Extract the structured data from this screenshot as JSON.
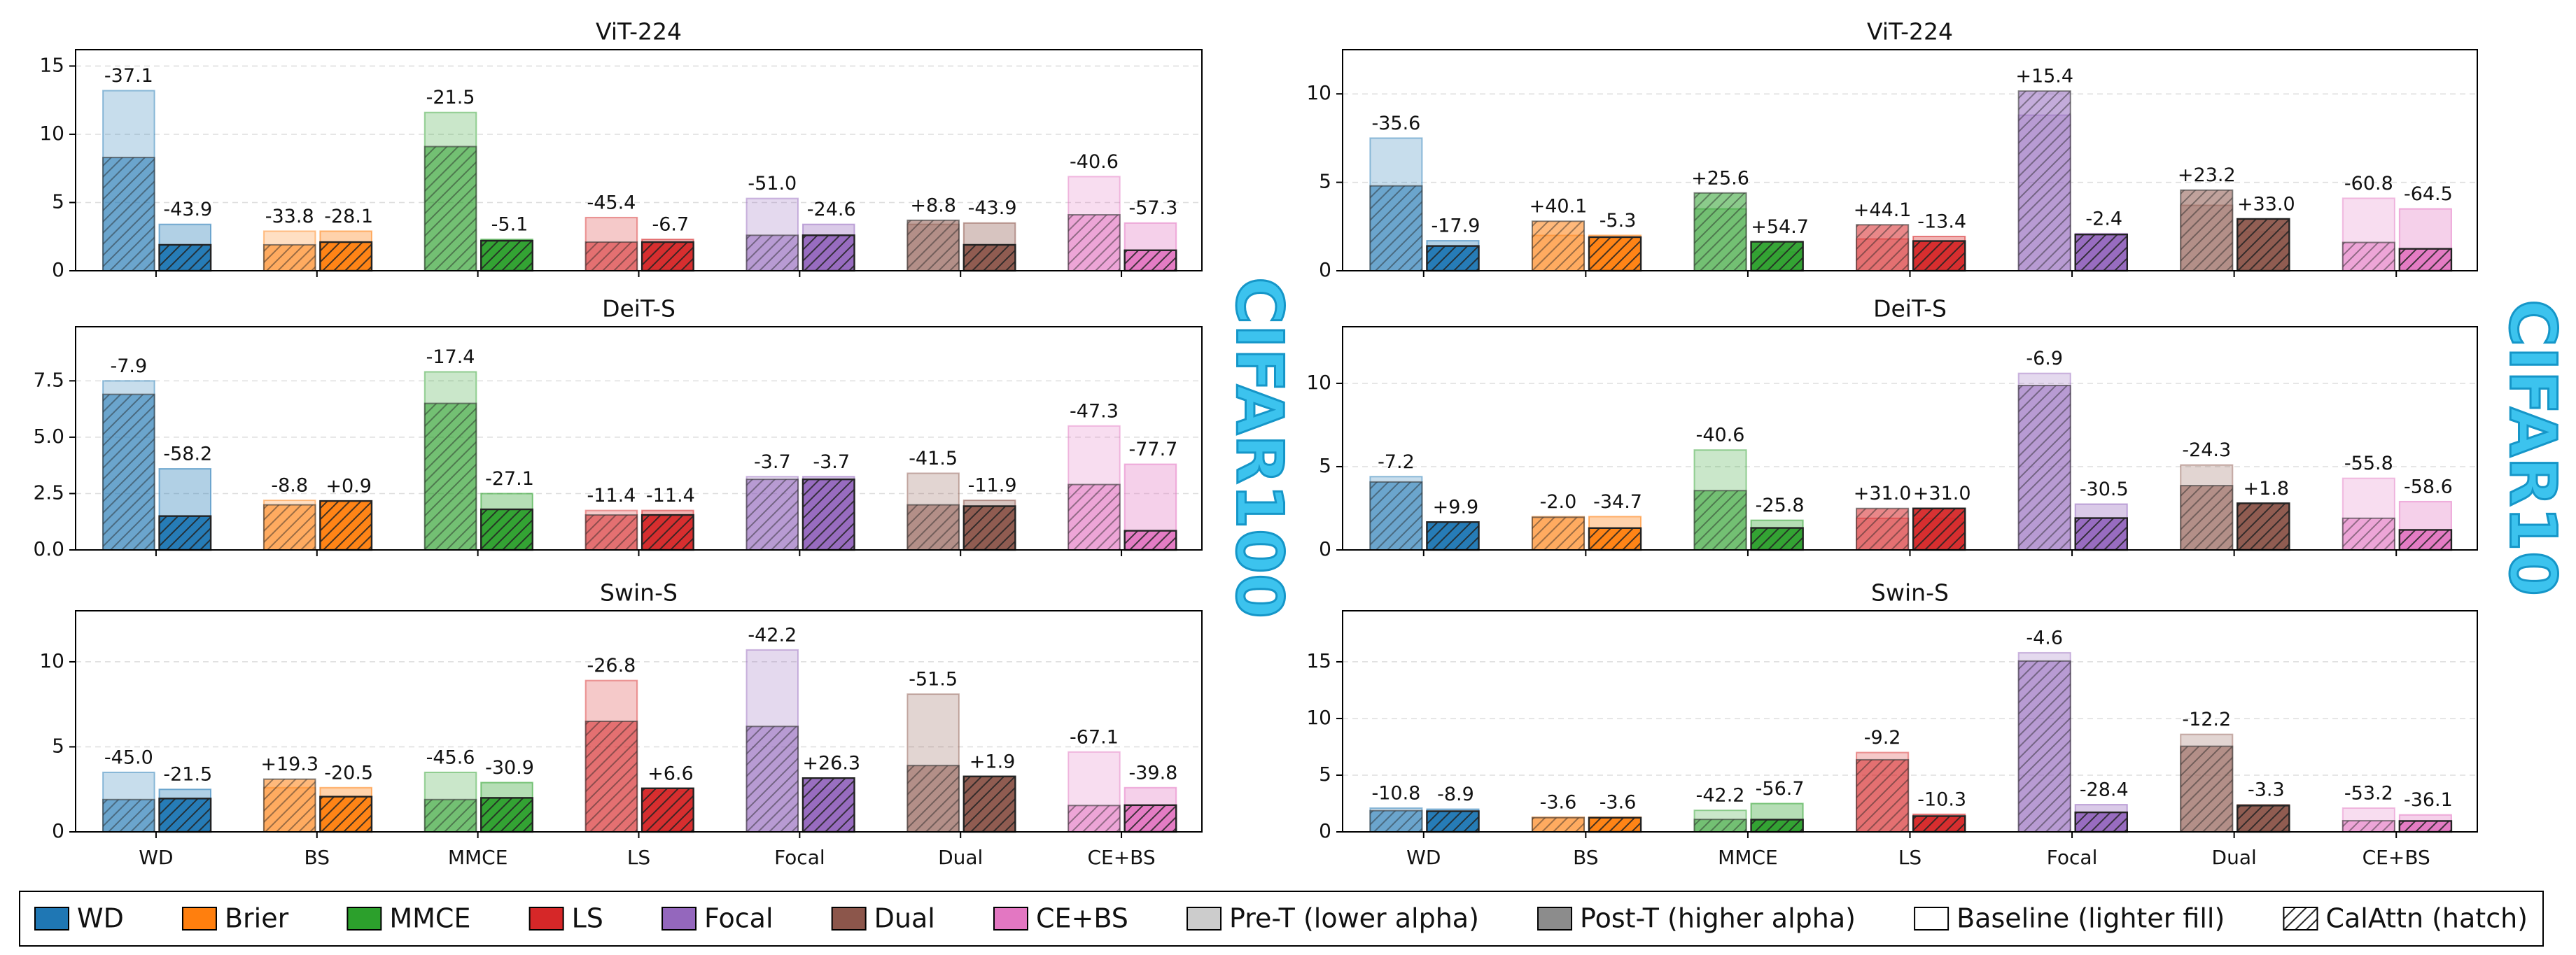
{
  "chart_data": [
    {
      "type": "overlay_bar",
      "title": "ViT-224",
      "categories": [
        null,
        null,
        null,
        null,
        null,
        null,
        null
      ],
      "colors": [
        "#1f77b4",
        "#ff7f0e",
        "#2ca02c",
        "#d62728",
        "#9467bd",
        "#8c564b",
        "#e377c2"
      ],
      "ylim": [
        0,
        16.2
      ],
      "yticks": [
        0,
        5,
        10,
        15
      ],
      "grid": true,
      "pre_baseline": [
        13.2,
        2.9,
        11.6,
        3.9,
        5.3,
        3.4,
        6.9
      ],
      "pre_calattn": [
        8.3,
        1.9,
        9.1,
        2.1,
        2.6,
        3.7,
        4.1
      ],
      "post_baseline": [
        3.4,
        2.9,
        2.3,
        2.3,
        3.4,
        3.5,
        3.5
      ],
      "post_calattn": [
        1.9,
        2.1,
        2.2,
        2.1,
        2.6,
        1.9,
        1.5
      ],
      "pre_change": [
        "-37.1",
        "-33.8",
        "-21.5",
        "-45.4",
        "-51.0",
        "+8.8",
        "-40.6"
      ],
      "post_change": [
        "-43.9",
        "-28.1",
        "-5.1",
        "-6.7",
        "-24.6",
        "-43.9",
        "-57.3"
      ]
    },
    {
      "type": "overlay_bar",
      "title": "DeiT-S",
      "categories": [
        null,
        null,
        null,
        null,
        null,
        null,
        null
      ],
      "colors": [
        "#1f77b4",
        "#ff7f0e",
        "#2ca02c",
        "#d62728",
        "#9467bd",
        "#8c564b",
        "#e377c2"
      ],
      "ylim": [
        0,
        9.9
      ],
      "yticks": [
        {
          "value": 0,
          "label": "0.0"
        },
        2.5,
        {
          "value": 5,
          "label": "5.0"
        },
        7.5
      ],
      "grid": true,
      "pre_baseline": [
        7.5,
        2.2,
        7.9,
        1.75,
        3.25,
        3.4,
        5.5
      ],
      "pre_calattn": [
        6.9,
        2.0,
        6.5,
        1.55,
        3.13,
        2.0,
        2.9
      ],
      "post_baseline": [
        3.6,
        2.15,
        2.5,
        1.75,
        3.25,
        2.2,
        3.8
      ],
      "post_calattn": [
        1.5,
        2.17,
        1.8,
        1.55,
        3.13,
        1.94,
        0.85
      ],
      "pre_change": [
        "-7.9",
        "-8.8",
        "-17.4",
        "-11.4",
        "-3.7",
        "-41.5",
        "-47.3"
      ],
      "post_change": [
        "-58.2",
        "+0.9",
        "-27.1",
        "-11.4",
        "-3.7",
        "-11.9",
        "-77.7"
      ]
    },
    {
      "type": "overlay_bar",
      "title": "Swin-S",
      "categories": [
        "WD",
        "BS",
        "MMCE",
        "LS",
        "Focal",
        "Dual",
        "CE+BS"
      ],
      "colors": [
        "#1f77b4",
        "#ff7f0e",
        "#2ca02c",
        "#d62728",
        "#9467bd",
        "#8c564b",
        "#e377c2"
      ],
      "ylim": [
        0,
        13
      ],
      "yticks": [
        0,
        5,
        10
      ],
      "grid": true,
      "pre_baseline": [
        3.5,
        2.6,
        3.5,
        8.9,
        10.7,
        8.1,
        4.7
      ],
      "pre_calattn": [
        1.9,
        3.1,
        1.9,
        6.5,
        6.2,
        3.9,
        1.55
      ],
      "post_baseline": [
        2.5,
        2.6,
        2.9,
        2.4,
        2.5,
        3.2,
        2.6
      ],
      "post_calattn": [
        1.96,
        2.07,
        2.0,
        2.56,
        3.16,
        3.26,
        1.57
      ],
      "pre_change": [
        "-45.0",
        "+19.3",
        "-45.6",
        "-26.8",
        "-42.2",
        "-51.5",
        "-67.1"
      ],
      "post_change": [
        "-21.5",
        "-20.5",
        "-30.9",
        "+6.6",
        "+26.3",
        "+1.9",
        "-39.8"
      ]
    },
    {
      "type": "overlay_bar",
      "title": "ViT-224",
      "categories": [
        null,
        null,
        null,
        null,
        null,
        null,
        null
      ],
      "colors": [
        "#1f77b4",
        "#ff7f0e",
        "#2ca02c",
        "#d62728",
        "#9467bd",
        "#8c564b",
        "#e377c2"
      ],
      "ylim": [
        0,
        12.5
      ],
      "yticks": [
        0,
        5,
        10
      ],
      "grid": true,
      "pre_baseline": [
        7.5,
        2.0,
        3.5,
        1.8,
        8.8,
        3.7,
        4.1
      ],
      "pre_calattn": [
        4.8,
        2.8,
        4.4,
        2.6,
        10.16,
        4.56,
        1.6
      ],
      "post_baseline": [
        1.7,
        2.0,
        1.06,
        1.94,
        2.1,
        2.2,
        3.5
      ],
      "post_calattn": [
        1.4,
        1.9,
        1.64,
        1.68,
        2.05,
        2.93,
        1.24
      ],
      "pre_change": [
        "-35.6",
        "+40.1",
        "+25.6",
        "+44.1",
        "+15.4",
        "+23.2",
        "-60.8"
      ],
      "post_change": [
        "-17.9",
        "-5.3",
        "+54.7",
        "-13.4",
        "-2.4",
        "+33.0",
        "-64.5"
      ]
    },
    {
      "type": "overlay_bar",
      "title": "DeiT-S",
      "categories": [
        null,
        null,
        null,
        null,
        null,
        null,
        null
      ],
      "colors": [
        "#1f77b4",
        "#ff7f0e",
        "#2ca02c",
        "#d62728",
        "#9467bd",
        "#8c564b",
        "#e377c2"
      ],
      "ylim": [
        0,
        13.4
      ],
      "yticks": [
        0,
        5,
        10
      ],
      "grid": true,
      "pre_baseline": [
        4.4,
        2.0,
        6.0,
        1.9,
        10.6,
        5.1,
        4.3
      ],
      "pre_calattn": [
        4.08,
        1.96,
        3.56,
        2.49,
        9.87,
        3.86,
        1.9
      ],
      "post_baseline": [
        1.52,
        2.0,
        1.78,
        1.9,
        2.75,
        2.75,
        2.9
      ],
      "post_calattn": [
        1.67,
        1.31,
        1.32,
        2.49,
        1.91,
        2.8,
        1.2
      ],
      "pre_change": [
        "-7.2",
        "-2.0",
        "-40.6",
        "+31.0",
        "-6.9",
        "-24.3",
        "-55.8"
      ],
      "post_change": [
        "+9.9",
        "-34.7",
        "-25.8",
        "+31.0",
        "-30.5",
        "+1.8",
        "-58.6"
      ]
    },
    {
      "type": "overlay_bar",
      "title": "Swin-S",
      "categories": [
        "WD",
        "BS",
        "MMCE",
        "LS",
        "Focal",
        "Dual",
        "CE+BS"
      ],
      "colors": [
        "#1f77b4",
        "#ff7f0e",
        "#2ca02c",
        "#d62728",
        "#9467bd",
        "#8c564b",
        "#e377c2"
      ],
      "ylim": [
        0,
        19.5
      ],
      "yticks": [
        0,
        5,
        10,
        15
      ],
      "grid": true,
      "pre_baseline": [
        2.1,
        1.3,
        1.9,
        7.0,
        15.8,
        8.6,
        2.1
      ],
      "pre_calattn": [
        1.87,
        1.25,
        1.1,
        6.36,
        15.07,
        7.55,
        0.98
      ],
      "post_baseline": [
        2.0,
        1.3,
        2.5,
        1.55,
        2.4,
        2.4,
        1.5
      ],
      "post_calattn": [
        1.82,
        1.25,
        1.08,
        1.39,
        1.72,
        2.32,
        0.96
      ],
      "pre_change": [
        "-10.8",
        "-3.6",
        "-42.2",
        "-9.2",
        "-4.6",
        "-12.2",
        "-53.2"
      ],
      "post_change": [
        "-8.9",
        "-3.6",
        "-56.7",
        "-10.3",
        "-28.4",
        "-3.3",
        "-36.1"
      ]
    }
  ],
  "side_labels": [
    "CIFAR100",
    "CIFAR10"
  ],
  "legend": [
    {
      "label": "WD",
      "color": "#1f77b4",
      "style": "solid"
    },
    {
      "label": "Brier",
      "color": "#ff7f0e",
      "style": "solid"
    },
    {
      "label": "MMCE",
      "color": "#2ca02c",
      "style": "solid"
    },
    {
      "label": "LS",
      "color": "#d62728",
      "style": "solid"
    },
    {
      "label": "Focal",
      "color": "#9467bd",
      "style": "solid"
    },
    {
      "label": "Dual",
      "color": "#8c564b",
      "style": "solid"
    },
    {
      "label": "CE+BS",
      "color": "#e377c2",
      "style": "solid"
    },
    {
      "label": "Pre-T (lower alpha)",
      "color": "#7f7f7f",
      "style": "pre"
    },
    {
      "label": "Post-T (higher alpha)",
      "color": "#7f7f7f",
      "style": "post"
    },
    {
      "label": "Baseline (lighter fill)",
      "color": "#ffffff",
      "style": "baseline"
    },
    {
      "label": "CalAttn (hatch)",
      "color": "#ffffff",
      "style": "hatch"
    }
  ]
}
